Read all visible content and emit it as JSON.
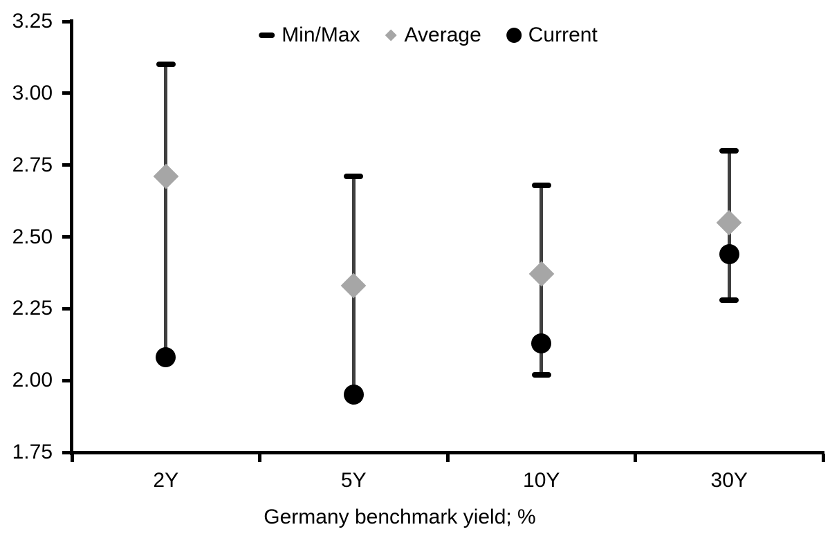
{
  "chart_data": {
    "type": "range-marker",
    "title": "",
    "xlabel": "Germany benchmark yield; %",
    "ylabel": "",
    "ylim": [
      1.75,
      3.25
    ],
    "ytick_labels": [
      "1.75",
      "2.00",
      "2.25",
      "2.50",
      "2.75",
      "3.00",
      "3.25"
    ],
    "ytick_values": [
      1.75,
      2.0,
      2.25,
      2.5,
      2.75,
      3.0,
      3.25
    ],
    "grid": false,
    "categories": [
      "2Y",
      "5Y",
      "10Y",
      "30Y"
    ],
    "series": [
      {
        "name": "Min/Max",
        "type": "range",
        "max": [
          3.1,
          2.71,
          2.68,
          2.8
        ],
        "min": [
          2.08,
          1.95,
          2.02,
          2.28
        ],
        "max_cap_visible": [
          true,
          true,
          true,
          true
        ],
        "min_cap_visible": [
          false,
          false,
          true,
          true
        ]
      },
      {
        "name": "Average",
        "type": "diamond",
        "values": [
          2.71,
          2.33,
          2.37,
          2.55
        ]
      },
      {
        "name": "Current",
        "type": "circle",
        "values": [
          2.08,
          1.95,
          2.13,
          2.44
        ]
      }
    ],
    "legend": [
      "Min/Max",
      "Average",
      "Current"
    ],
    "legend_position": "top-center",
    "colors": {
      "range_line": "#3f3f3f",
      "cap": "#000000",
      "average": "#a6a6a6",
      "current": "#000000",
      "text": "#000000",
      "background": "#ffffff"
    }
  }
}
